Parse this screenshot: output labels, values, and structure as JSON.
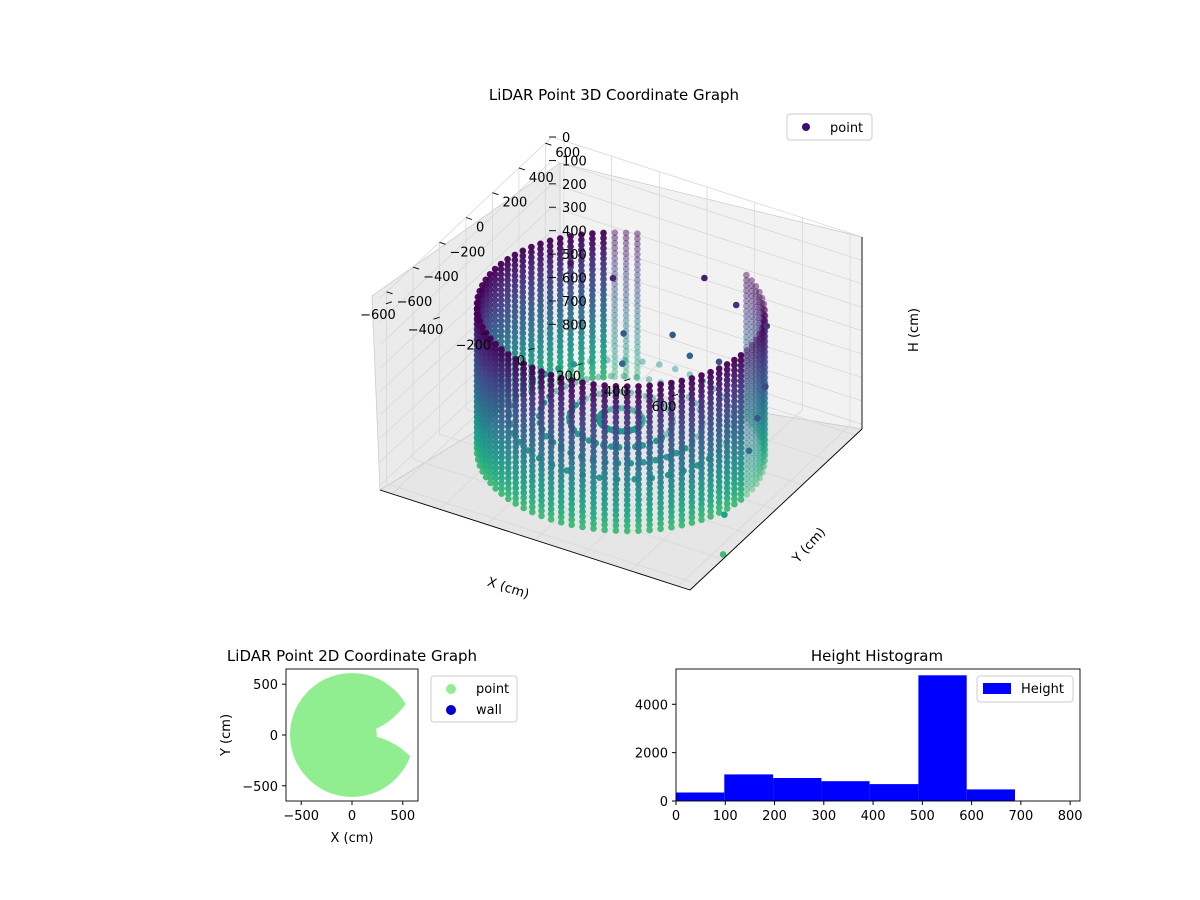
{
  "chart_data": [
    {
      "type": "scatter",
      "projection": "3d",
      "title": "LiDAR Point 3D Coordinate Graph",
      "xlabel": "X (cm)",
      "ylabel": "Y (cm)",
      "zlabel": "H (cm)",
      "xlim": [
        -650,
        650
      ],
      "ylim": [
        -650,
        650
      ],
      "zlim": [
        0,
        820
      ],
      "z_inverted": true,
      "xticks": [
        "−600",
        "−400",
        "−200",
        "0",
        "200",
        "400",
        "600"
      ],
      "yticks": [
        "−600",
        "−400",
        "−200",
        "0",
        "200",
        "400",
        "600"
      ],
      "zticks": [
        "0",
        "100",
        "200",
        "300",
        "400",
        "500",
        "600",
        "700",
        "800"
      ],
      "grid": true,
      "legend": {
        "placement": "top-right",
        "entries": [
          {
            "name": "point",
            "color": "#3b0f70"
          }
        ]
      },
      "colormap": "viridis",
      "series": [
        {
          "name": "point",
          "shape": "cylinder-wall",
          "radius": 600,
          "height_range": [
            180,
            800
          ],
          "gap_angle_deg": [
            -20,
            30
          ]
        },
        {
          "name": "point",
          "shape": "interior-clutter",
          "description_points": [
            [
              -350,
              250,
              230
            ],
            [
              -200,
              300,
              270
            ],
            [
              100,
              450,
              250
            ],
            [
              250,
              420,
              300
            ],
            [
              400,
              380,
              320
            ],
            [
              -100,
              200,
              420
            ],
            [
              50,
              300,
              430
            ],
            [
              150,
              250,
              460
            ],
            [
              -50,
              100,
              480
            ],
            [
              300,
              200,
              410
            ],
            [
              550,
              100,
              380
            ],
            [
              600,
              -50,
              420
            ],
            [
              620,
              -150,
              500
            ],
            [
              600,
              -300,
              700
            ],
            [
              650,
              -400,
              800
            ]
          ]
        }
      ]
    },
    {
      "type": "scatter",
      "title": "LiDAR Point 2D Coordinate Graph",
      "xlabel": "X (cm)",
      "ylabel": "Y (cm)",
      "xlim": [
        -650,
        650
      ],
      "ylim": [
        -650,
        650
      ],
      "xticks": [
        "−500",
        "0",
        "500"
      ],
      "yticks": [
        "−500",
        "0",
        "500"
      ],
      "legend": {
        "placement": "outside-right",
        "entries": [
          {
            "name": "point",
            "color": "#90ee90"
          },
          {
            "name": "wall",
            "color": "#0000cd"
          }
        ]
      },
      "point_region": {
        "radius": 610,
        "gap_angle_deg": [
          -20,
          30
        ],
        "gap_depth": 0.6
      }
    },
    {
      "type": "bar",
      "title": "Height Histogram",
      "legend": {
        "placement": "top-right",
        "entries": [
          {
            "name": "Height",
            "color": "#0000ff"
          }
        ]
      },
      "xlim": [
        0,
        820
      ],
      "ylim": [
        0,
        5460
      ],
      "xticks": [
        "0",
        "100",
        "200",
        "300",
        "400",
        "500",
        "600",
        "700",
        "800"
      ],
      "yticks": [
        "0",
        "2000",
        "4000"
      ],
      "bins": [
        {
          "x0": 0,
          "x1": 98,
          "value": 350
        },
        {
          "x0": 98,
          "x1": 197,
          "value": 1100
        },
        {
          "x0": 197,
          "x1": 295,
          "value": 950
        },
        {
          "x0": 295,
          "x1": 393,
          "value": 820
        },
        {
          "x0": 393,
          "x1": 492,
          "value": 700
        },
        {
          "x0": 492,
          "x1": 590,
          "value": 5200
        },
        {
          "x0": 590,
          "x1": 688,
          "value": 480
        },
        {
          "x0": 688,
          "x1": 787,
          "value": 0
        }
      ],
      "color": "#0000ff"
    }
  ]
}
